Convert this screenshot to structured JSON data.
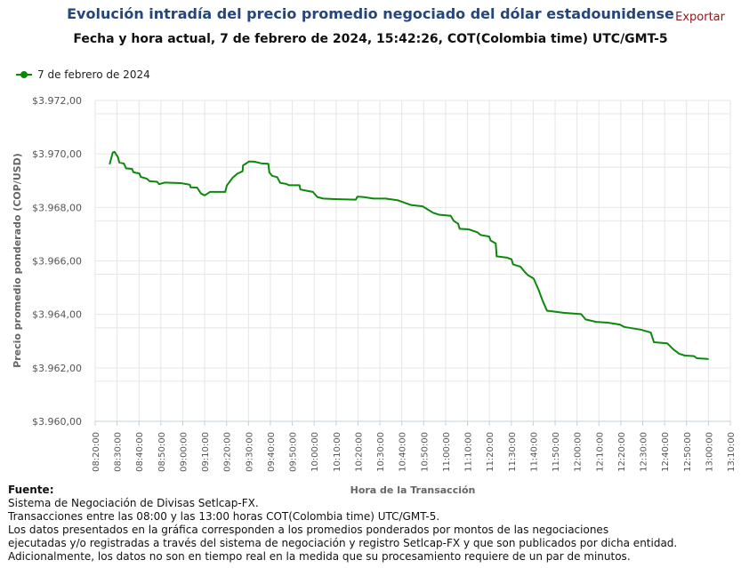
{
  "header": {
    "title": "Evolución intradía del precio promedio negociado del dólar estadounidense",
    "subtitle": "Fecha y hora actual, 7 de febrero de 2024, 15:42:26, COT(Colombia time) UTC/GMT-5",
    "export_label": "Exportar"
  },
  "colors": {
    "series": "#0a8a0a",
    "title": "#26467a",
    "export": "#8b1a1a",
    "grid": "#e6e6e6"
  },
  "footer": {
    "heading": "Fuente:",
    "lines": [
      "Sistema de Negociación de Divisas Setlcap-FX.",
      "Transacciones entre las 08:00 y las 13:00 horas COT(Colombia time) UTC/GMT-5.",
      "Los datos presentados en la gráfica corresponden a los promedios ponderados por montos de las negociaciones",
      "ejecutadas y/o registradas a través del sistema de negociación y registro Setlcap-FX y que son publicados por dicha entidad.",
      "Adicionalmente, los datos no son en tiempo real en la medida que su procesamiento requiere de un par de minutos."
    ]
  },
  "chart_data": {
    "type": "line",
    "xlabel": "Hora de la Transacción",
    "ylabel": "Precio promedio ponderado (COP/USD)",
    "legend_position": "top-left",
    "grid": true,
    "xlim": [
      "08:20:00",
      "13:10:00"
    ],
    "ylim": [
      3960,
      3972
    ],
    "x_ticks": [
      "08:20:00",
      "08:30:00",
      "08:40:00",
      "08:50:00",
      "09:00:00",
      "09:10:00",
      "09:20:00",
      "09:30:00",
      "09:40:00",
      "09:50:00",
      "10:00:00",
      "10:10:00",
      "10:20:00",
      "10:30:00",
      "10:40:00",
      "10:50:00",
      "11:00:00",
      "11:10:00",
      "11:20:00",
      "11:30:00",
      "11:40:00",
      "11:50:00",
      "12:00:00",
      "12:10:00",
      "12:20:00",
      "12:30:00",
      "12:40:00",
      "12:50:00",
      "13:00:00",
      "13:10:00"
    ],
    "y_ticks": [
      3960,
      3962,
      3964,
      3966,
      3968,
      3970,
      3972
    ],
    "y_tick_labels": [
      "$3.960,00",
      "$3.962,00",
      "$3.964,00",
      "$3.966,00",
      "$3.968,00",
      "$3.970,00",
      "$3.972,00"
    ],
    "series": [
      {
        "name": "7 de febrero de 2024",
        "x": [
          "08:26:36",
          "08:28:00",
          "08:28:48",
          "08:30:24",
          "08:31:00",
          "08:33:06",
          "08:34:06",
          "08:36:48",
          "08:37:30",
          "08:40:12",
          "08:40:48",
          "08:43:36",
          "08:44:54",
          "08:48:18",
          "08:49:12",
          "08:51:42",
          "08:59:06",
          "09:03:12",
          "09:03:36",
          "09:06:36",
          "09:08:18",
          "09:10:00",
          "09:12:24",
          "09:19:24",
          "09:20:06",
          "09:22:48",
          "09:24:54",
          "09:27:18",
          "09:27:30",
          "09:30:18",
          "09:32:42",
          "09:35:42",
          "09:39:06",
          "09:39:30",
          "09:40:48",
          "09:43:06",
          "09:44:30",
          "09:47:12",
          "09:48:30",
          "09:53:18",
          "09:53:42",
          "09:57:24",
          "09:59:24",
          "10:01:24",
          "10:04:06",
          "10:09:30",
          "10:19:00",
          "10:19:42",
          "10:22:24",
          "10:27:06",
          "10:32:30",
          "10:38:00",
          "10:44:06",
          "10:49:30",
          "10:54:12",
          "10:56:54",
          "11:02:18",
          "11:03:42",
          "11:05:42",
          "11:06:24",
          "11:10:30",
          "11:14:30",
          "11:15:54",
          "11:19:54",
          "11:20:36",
          "11:22:54",
          "11:23:18",
          "11:28:06",
          "11:30:06",
          "11:30:48",
          "11:34:12",
          "11:36:12",
          "11:37:30",
          "11:40:12",
          "11:42:18",
          "11:44:18",
          "11:46:18",
          "11:53:48",
          "12:01:54",
          "12:03:54",
          "12:08:42",
          "12:14:06",
          "12:19:30",
          "12:21:30",
          "12:29:00",
          "12:33:42",
          "12:35:06",
          "12:41:12",
          "12:43:54",
          "12:46:36",
          "12:49:18",
          "12:53:24",
          "12:54:42",
          "13:00:06"
        ],
        "values": [
          3969.61,
          3970.05,
          3970.08,
          3969.88,
          3969.68,
          3969.64,
          3969.46,
          3969.44,
          3969.31,
          3969.27,
          3969.14,
          3969.07,
          3968.98,
          3968.96,
          3968.87,
          3968.93,
          3968.91,
          3968.85,
          3968.75,
          3968.74,
          3968.52,
          3968.45,
          3968.58,
          3968.58,
          3968.82,
          3969.11,
          3969.26,
          3969.35,
          3969.57,
          3969.72,
          3969.71,
          3969.65,
          3969.63,
          3969.31,
          3969.18,
          3969.13,
          3968.92,
          3968.88,
          3968.83,
          3968.83,
          3968.67,
          3968.61,
          3968.58,
          3968.39,
          3968.33,
          3968.31,
          3968.29,
          3968.4,
          3968.39,
          3968.33,
          3968.33,
          3968.27,
          3968.09,
          3968.04,
          3967.8,
          3967.73,
          3967.69,
          3967.5,
          3967.39,
          3967.2,
          3967.18,
          3967.07,
          3966.97,
          3966.91,
          3966.76,
          3966.65,
          3966.17,
          3966.12,
          3966.06,
          3965.87,
          3965.78,
          3965.58,
          3965.47,
          3965.34,
          3964.95,
          3964.51,
          3964.14,
          3964.06,
          3964.01,
          3963.81,
          3963.72,
          3963.69,
          3963.62,
          3963.53,
          3963.43,
          3963.32,
          3962.96,
          3962.92,
          3962.7,
          3962.53,
          3962.46,
          3962.44,
          3962.36,
          3962.33
        ]
      }
    ]
  }
}
